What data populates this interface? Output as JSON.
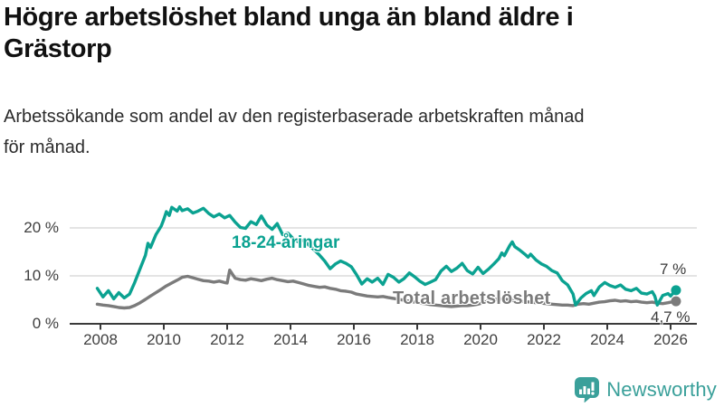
{
  "header": {
    "title_line1": "Högre arbetslöshet bland unga än bland äldre i",
    "title_line2": "Grästorp",
    "subtitle_line1": "Arbetssökande som andel av den registerbaserade arbetskraften månad",
    "subtitle_line2": "för månad."
  },
  "colors": {
    "young_line": "#0ba291",
    "total_line": "#7b7b7b",
    "grid": "#dcdcdc",
    "axis": "#3a3a3a",
    "logo_teal": "#3aa09a",
    "title_text": "#111111"
  },
  "chart_data": {
    "type": "line",
    "title": "Högre arbetslöshet bland unga än bland äldre i Grästorp",
    "subtitle": "Arbetssökande som andel av den registerbaserade arbetskraften månad för månad.",
    "xlabel": "",
    "ylabel": "",
    "grid": "horizontal",
    "legend_position": "inline-labels",
    "xlim": [
      2007.8,
      2026.8
    ],
    "ylim": [
      0,
      27
    ],
    "x_ticks": [
      2008,
      2010,
      2012,
      2014,
      2016,
      2018,
      2020,
      2022,
      2024,
      2026
    ],
    "x_tick_labels": [
      "2008",
      "2010",
      "2012",
      "2014",
      "2016",
      "2018",
      "2020",
      "2022",
      "2024",
      "2026"
    ],
    "y_ticks": [
      0,
      10,
      20
    ],
    "y_tick_labels": [
      "0 %",
      "10 %",
      "20 %"
    ],
    "series": [
      {
        "name": "18-24-åringar",
        "color": "#0ba291",
        "end_label": "7 %",
        "end_value": 7.0,
        "points": [
          [
            2007.9,
            7.4
          ],
          [
            2008.08,
            5.6
          ],
          [
            2008.25,
            6.9
          ],
          [
            2008.42,
            5.2
          ],
          [
            2008.58,
            6.5
          ],
          [
            2008.75,
            5.4
          ],
          [
            2008.92,
            6.2
          ],
          [
            2009.08,
            8.6
          ],
          [
            2009.25,
            11.5
          ],
          [
            2009.42,
            14.3
          ],
          [
            2009.5,
            16.8
          ],
          [
            2009.58,
            15.9
          ],
          [
            2009.75,
            18.6
          ],
          [
            2009.92,
            20.4
          ],
          [
            2010.0,
            21.8
          ],
          [
            2010.08,
            23.4
          ],
          [
            2010.17,
            22.6
          ],
          [
            2010.25,
            24.3
          ],
          [
            2010.42,
            23.5
          ],
          [
            2010.5,
            24.4
          ],
          [
            2010.58,
            23.6
          ],
          [
            2010.75,
            24.0
          ],
          [
            2010.92,
            23.1
          ],
          [
            2011.08,
            23.5
          ],
          [
            2011.25,
            24.1
          ],
          [
            2011.42,
            23.0
          ],
          [
            2011.58,
            22.3
          ],
          [
            2011.75,
            22.9
          ],
          [
            2011.92,
            22.1
          ],
          [
            2012.08,
            22.6
          ],
          [
            2012.25,
            21.2
          ],
          [
            2012.42,
            20.1
          ],
          [
            2012.58,
            19.9
          ],
          [
            2012.75,
            21.3
          ],
          [
            2012.92,
            20.7
          ],
          [
            2013.08,
            22.5
          ],
          [
            2013.25,
            20.6
          ],
          [
            2013.42,
            19.7
          ],
          [
            2013.58,
            20.9
          ],
          [
            2013.75,
            18.6
          ],
          [
            2013.92,
            18.9
          ],
          [
            2014.08,
            17.8
          ],
          [
            2014.25,
            17.1
          ],
          [
            2014.42,
            17.5
          ],
          [
            2014.58,
            16.4
          ],
          [
            2014.75,
            15.4
          ],
          [
            2014.92,
            14.3
          ],
          [
            2015.08,
            13.1
          ],
          [
            2015.25,
            11.5
          ],
          [
            2015.42,
            12.5
          ],
          [
            2015.58,
            13.1
          ],
          [
            2015.75,
            12.6
          ],
          [
            2015.92,
            11.9
          ],
          [
            2016.08,
            10.3
          ],
          [
            2016.25,
            8.3
          ],
          [
            2016.42,
            9.4
          ],
          [
            2016.58,
            8.7
          ],
          [
            2016.75,
            9.5
          ],
          [
            2016.92,
            8.2
          ],
          [
            2017.08,
            10.3
          ],
          [
            2017.25,
            9.7
          ],
          [
            2017.42,
            8.7
          ],
          [
            2017.58,
            9.4
          ],
          [
            2017.75,
            10.6
          ],
          [
            2017.92,
            9.8
          ],
          [
            2018.08,
            8.9
          ],
          [
            2018.25,
            8.2
          ],
          [
            2018.42,
            8.7
          ],
          [
            2018.58,
            9.2
          ],
          [
            2018.75,
            11.0
          ],
          [
            2018.92,
            12.0
          ],
          [
            2019.08,
            10.9
          ],
          [
            2019.25,
            11.6
          ],
          [
            2019.42,
            12.6
          ],
          [
            2019.58,
            11.1
          ],
          [
            2019.75,
            10.4
          ],
          [
            2019.92,
            11.8
          ],
          [
            2020.08,
            10.5
          ],
          [
            2020.25,
            11.4
          ],
          [
            2020.42,
            12.5
          ],
          [
            2020.58,
            13.6
          ],
          [
            2020.67,
            14.8
          ],
          [
            2020.75,
            14.2
          ],
          [
            2020.92,
            16.3
          ],
          [
            2021.0,
            17.1
          ],
          [
            2021.08,
            16.1
          ],
          [
            2021.25,
            15.3
          ],
          [
            2021.42,
            14.4
          ],
          [
            2021.5,
            13.9
          ],
          [
            2021.58,
            14.5
          ],
          [
            2021.75,
            13.3
          ],
          [
            2021.92,
            12.5
          ],
          [
            2022.08,
            12.0
          ],
          [
            2022.25,
            11.1
          ],
          [
            2022.42,
            10.6
          ],
          [
            2022.58,
            9.0
          ],
          [
            2022.75,
            8.1
          ],
          [
            2022.92,
            6.2
          ],
          [
            2023.0,
            3.9
          ],
          [
            2023.17,
            5.4
          ],
          [
            2023.33,
            6.3
          ],
          [
            2023.5,
            6.9
          ],
          [
            2023.58,
            5.9
          ],
          [
            2023.75,
            7.7
          ],
          [
            2023.92,
            8.6
          ],
          [
            2024.08,
            8.0
          ],
          [
            2024.25,
            7.6
          ],
          [
            2024.42,
            8.1
          ],
          [
            2024.58,
            7.2
          ],
          [
            2024.75,
            6.9
          ],
          [
            2024.92,
            7.4
          ],
          [
            2025.08,
            6.4
          ],
          [
            2025.25,
            6.2
          ],
          [
            2025.42,
            6.7
          ],
          [
            2025.5,
            5.8
          ],
          [
            2025.58,
            3.9
          ],
          [
            2025.75,
            5.9
          ],
          [
            2025.92,
            6.3
          ],
          [
            2026.0,
            5.8
          ],
          [
            2026.08,
            6.4
          ],
          [
            2026.17,
            7.0
          ]
        ]
      },
      {
        "name": "Total arbetslöshet",
        "color": "#7b7b7b",
        "end_label": "4,7 %",
        "end_value": 4.7,
        "points": [
          [
            2007.9,
            4.1
          ],
          [
            2008.08,
            3.9
          ],
          [
            2008.25,
            3.8
          ],
          [
            2008.42,
            3.6
          ],
          [
            2008.58,
            3.4
          ],
          [
            2008.75,
            3.3
          ],
          [
            2008.92,
            3.4
          ],
          [
            2009.08,
            3.8
          ],
          [
            2009.25,
            4.4
          ],
          [
            2009.42,
            5.1
          ],
          [
            2009.58,
            5.8
          ],
          [
            2009.75,
            6.5
          ],
          [
            2009.92,
            7.2
          ],
          [
            2010.08,
            7.9
          ],
          [
            2010.25,
            8.5
          ],
          [
            2010.42,
            9.1
          ],
          [
            2010.58,
            9.7
          ],
          [
            2010.75,
            9.9
          ],
          [
            2010.92,
            9.6
          ],
          [
            2011.08,
            9.3
          ],
          [
            2011.25,
            9.0
          ],
          [
            2011.42,
            8.9
          ],
          [
            2011.58,
            8.7
          ],
          [
            2011.75,
            8.9
          ],
          [
            2011.92,
            8.6
          ],
          [
            2012.0,
            8.5
          ],
          [
            2012.08,
            11.2
          ],
          [
            2012.17,
            10.3
          ],
          [
            2012.25,
            9.5
          ],
          [
            2012.42,
            9.2
          ],
          [
            2012.58,
            9.1
          ],
          [
            2012.75,
            9.4
          ],
          [
            2012.92,
            9.2
          ],
          [
            2013.08,
            9.0
          ],
          [
            2013.25,
            9.3
          ],
          [
            2013.42,
            9.5
          ],
          [
            2013.58,
            9.2
          ],
          [
            2013.75,
            9.0
          ],
          [
            2013.92,
            8.8
          ],
          [
            2014.08,
            8.9
          ],
          [
            2014.25,
            8.6
          ],
          [
            2014.42,
            8.3
          ],
          [
            2014.58,
            8.0
          ],
          [
            2014.75,
            7.8
          ],
          [
            2014.92,
            7.6
          ],
          [
            2015.08,
            7.7
          ],
          [
            2015.25,
            7.4
          ],
          [
            2015.42,
            7.2
          ],
          [
            2015.58,
            6.9
          ],
          [
            2015.75,
            6.8
          ],
          [
            2015.92,
            6.6
          ],
          [
            2016.08,
            6.2
          ],
          [
            2016.25,
            6.0
          ],
          [
            2016.42,
            5.8
          ],
          [
            2016.58,
            5.7
          ],
          [
            2016.75,
            5.6
          ],
          [
            2016.92,
            5.7
          ],
          [
            2017.08,
            5.5
          ],
          [
            2017.25,
            5.3
          ],
          [
            2017.42,
            5.1
          ],
          [
            2017.58,
            4.9
          ],
          [
            2017.75,
            4.7
          ],
          [
            2017.92,
            4.5
          ],
          [
            2018.08,
            4.3
          ],
          [
            2018.25,
            4.2
          ],
          [
            2018.42,
            4.0
          ],
          [
            2018.58,
            3.9
          ],
          [
            2018.75,
            3.8
          ],
          [
            2018.92,
            3.7
          ],
          [
            2019.08,
            3.6
          ],
          [
            2019.25,
            3.7
          ],
          [
            2019.42,
            3.8
          ],
          [
            2019.58,
            3.8
          ],
          [
            2019.75,
            3.9
          ],
          [
            2019.92,
            4.1
          ],
          [
            2020.08,
            4.4
          ],
          [
            2020.25,
            4.8
          ],
          [
            2020.42,
            5.1
          ],
          [
            2020.58,
            5.2
          ],
          [
            2020.75,
            5.1
          ],
          [
            2020.92,
            5.0
          ],
          [
            2021.08,
            4.8
          ],
          [
            2021.25,
            4.7
          ],
          [
            2021.42,
            4.6
          ],
          [
            2021.58,
            4.5
          ],
          [
            2021.75,
            4.4
          ],
          [
            2021.92,
            4.3
          ],
          [
            2022.08,
            4.2
          ],
          [
            2022.25,
            4.1
          ],
          [
            2022.42,
            4.0
          ],
          [
            2022.58,
            3.9
          ],
          [
            2022.75,
            3.9
          ],
          [
            2022.92,
            3.8
          ],
          [
            2023.08,
            4.1
          ],
          [
            2023.25,
            4.2
          ],
          [
            2023.42,
            4.1
          ],
          [
            2023.58,
            4.3
          ],
          [
            2023.75,
            4.5
          ],
          [
            2023.92,
            4.6
          ],
          [
            2024.08,
            4.8
          ],
          [
            2024.25,
            4.9
          ],
          [
            2024.42,
            4.7
          ],
          [
            2024.58,
            4.8
          ],
          [
            2024.75,
            4.6
          ],
          [
            2024.92,
            4.7
          ],
          [
            2025.08,
            4.5
          ],
          [
            2025.25,
            4.4
          ],
          [
            2025.42,
            4.5
          ],
          [
            2025.58,
            4.3
          ],
          [
            2025.75,
            4.2
          ],
          [
            2025.92,
            4.4
          ],
          [
            2026.08,
            4.6
          ],
          [
            2026.17,
            4.7
          ]
        ]
      }
    ]
  },
  "footer": {
    "brand": "Newsworthy",
    "logo_icon": "bar-chart-speech-bubble"
  }
}
